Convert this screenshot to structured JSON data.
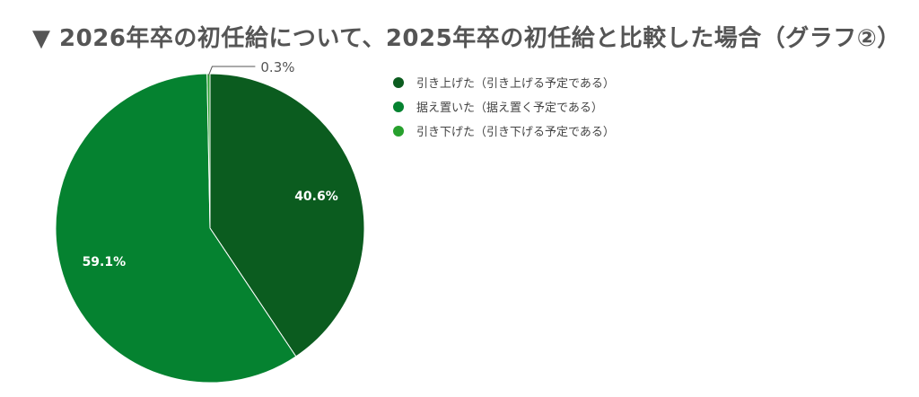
{
  "title": "▼ 2026年卒の初任給について、2025年卒の初任給と比較した場合（グラフ②）",
  "chart_data": {
    "type": "pie",
    "categories": [
      "引き上げた（引き上げる予定である）",
      "据え置いた（据え置く予定である）",
      "引き下げた（引き下げる予定である）"
    ],
    "values": [
      40.6,
      59.1,
      0.3
    ],
    "labels": [
      "40.6%",
      "59.1%",
      "0.3%"
    ],
    "colors": [
      "#0b5c1f",
      "#058230",
      "#27a02d"
    ],
    "title": "",
    "legend_position": "right"
  }
}
